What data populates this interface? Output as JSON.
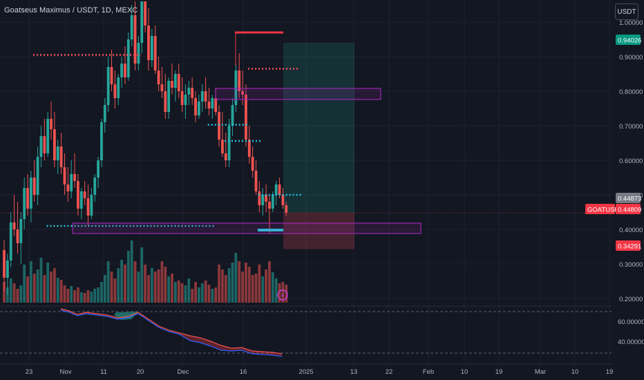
{
  "header": {
    "symbol_title": "Goatseus Maximus / USDT, 1D, MEXC",
    "currency_button": "USDT"
  },
  "chart_data": {
    "type": "candlestick",
    "symbol": "GOATUSDT",
    "price_axis": {
      "ticks": [
        "1.00000",
        "0.90000",
        "0.80000",
        "0.70000",
        "0.60000",
        "0.50000",
        "0.40000",
        "0.30000",
        "0.20000"
      ],
      "ylim": [
        0.17,
        1.0
      ]
    },
    "time_axis": {
      "labels": [
        "23",
        "Nov",
        "11",
        "20",
        "Dec",
        "16",
        "2025",
        "13",
        "22",
        "Feb",
        "10",
        "19",
        "Mar",
        "10",
        "19"
      ]
    },
    "price_labels": {
      "target": "0.94026",
      "last_close": "0.44873",
      "symbol": "GOATUSDT",
      "current": "0.44809",
      "stop": "0.34291"
    },
    "trade_zone": {
      "entry": 0.448,
      "target": 0.94026,
      "stop": 0.34291
    },
    "indicator_pane": {
      "ticks": [
        "60.00000",
        "40.00000"
      ],
      "levels": [
        70,
        30
      ]
    },
    "colors": {
      "up": "#26a69a",
      "down": "#ef5350",
      "background": "#131722",
      "zone_border": "#9c27b0",
      "target_fill": "#22ab94",
      "stop_fill": "#f7525f",
      "dotted_resistance": "#f7525f",
      "dotted_support": "#26c6da"
    },
    "candles": [
      [
        0.34,
        0.37,
        0.22,
        0.26
      ],
      [
        0.26,
        0.33,
        0.21,
        0.31
      ],
      [
        0.31,
        0.45,
        0.29,
        0.42
      ],
      [
        0.42,
        0.5,
        0.38,
        0.4
      ],
      [
        0.4,
        0.48,
        0.33,
        0.36
      ],
      [
        0.36,
        0.45,
        0.3,
        0.43
      ],
      [
        0.43,
        0.55,
        0.4,
        0.52
      ],
      [
        0.52,
        0.56,
        0.44,
        0.46
      ],
      [
        0.46,
        0.57,
        0.42,
        0.55
      ],
      [
        0.55,
        0.6,
        0.48,
        0.5
      ],
      [
        0.5,
        0.64,
        0.47,
        0.61
      ],
      [
        0.61,
        0.7,
        0.58,
        0.67
      ],
      [
        0.67,
        0.72,
        0.6,
        0.62
      ],
      [
        0.62,
        0.74,
        0.61,
        0.72
      ],
      [
        0.72,
        0.77,
        0.66,
        0.69
      ],
      [
        0.69,
        0.74,
        0.58,
        0.6
      ],
      [
        0.6,
        0.66,
        0.56,
        0.64
      ],
      [
        0.64,
        0.68,
        0.56,
        0.58
      ],
      [
        0.58,
        0.62,
        0.5,
        0.53
      ],
      [
        0.53,
        0.58,
        0.48,
        0.51
      ],
      [
        0.51,
        0.6,
        0.49,
        0.56
      ],
      [
        0.56,
        0.62,
        0.52,
        0.54
      ],
      [
        0.54,
        0.56,
        0.44,
        0.46
      ],
      [
        0.46,
        0.52,
        0.43,
        0.51
      ],
      [
        0.51,
        0.54,
        0.47,
        0.49
      ],
      [
        0.49,
        0.53,
        0.41,
        0.44
      ],
      [
        0.44,
        0.52,
        0.43,
        0.5
      ],
      [
        0.5,
        0.56,
        0.48,
        0.55
      ],
      [
        0.55,
        0.61,
        0.52,
        0.6
      ],
      [
        0.6,
        0.72,
        0.58,
        0.71
      ],
      [
        0.71,
        0.78,
        0.68,
        0.76
      ],
      [
        0.76,
        0.9,
        0.74,
        0.87
      ],
      [
        0.87,
        0.92,
        0.8,
        0.82
      ],
      [
        0.82,
        0.86,
        0.75,
        0.78
      ],
      [
        0.78,
        0.85,
        0.76,
        0.84
      ],
      [
        0.84,
        0.9,
        0.81,
        0.88
      ],
      [
        0.88,
        0.93,
        0.82,
        0.84
      ],
      [
        0.84,
        0.97,
        0.83,
        0.95
      ],
      [
        0.95,
        1.05,
        0.93,
        1.02
      ],
      [
        1.02,
        1.06,
        0.86,
        0.88
      ],
      [
        0.88,
        0.96,
        0.86,
        0.94
      ],
      [
        0.94,
        1.08,
        0.91,
        1.06
      ],
      [
        1.06,
        1.1,
        0.97,
        0.99
      ],
      [
        0.99,
        1.04,
        0.86,
        0.89
      ],
      [
        0.89,
        0.98,
        0.87,
        0.96
      ],
      [
        0.96,
        0.99,
        0.85,
        0.86
      ],
      [
        0.86,
        0.9,
        0.8,
        0.82
      ],
      [
        0.82,
        0.87,
        0.78,
        0.8
      ],
      [
        0.8,
        0.85,
        0.72,
        0.74
      ],
      [
        0.74,
        0.84,
        0.72,
        0.83
      ],
      [
        0.83,
        0.88,
        0.79,
        0.81
      ],
      [
        0.81,
        0.86,
        0.77,
        0.85
      ],
      [
        0.85,
        0.88,
        0.78,
        0.8
      ],
      [
        0.8,
        0.84,
        0.74,
        0.76
      ],
      [
        0.76,
        0.82,
        0.72,
        0.79
      ],
      [
        0.79,
        0.83,
        0.76,
        0.81
      ],
      [
        0.81,
        0.84,
        0.76,
        0.78
      ],
      [
        0.78,
        0.8,
        0.71,
        0.73
      ],
      [
        0.73,
        0.79,
        0.72,
        0.77
      ],
      [
        0.77,
        0.82,
        0.74,
        0.8
      ],
      [
        0.8,
        0.84,
        0.75,
        0.77
      ],
      [
        0.77,
        0.81,
        0.73,
        0.75
      ],
      [
        0.75,
        0.79,
        0.72,
        0.78
      ],
      [
        0.78,
        0.81,
        0.73,
        0.74
      ],
      [
        0.74,
        0.76,
        0.64,
        0.66
      ],
      [
        0.66,
        0.74,
        0.61,
        0.62
      ],
      [
        0.62,
        0.68,
        0.58,
        0.6
      ],
      [
        0.6,
        0.72,
        0.58,
        0.7
      ],
      [
        0.7,
        0.78,
        0.67,
        0.76
      ],
      [
        0.76,
        0.88,
        0.74,
        0.86
      ],
      [
        0.86,
        0.91,
        0.78,
        0.8
      ],
      [
        0.8,
        0.86,
        0.76,
        0.79
      ],
      [
        0.79,
        0.82,
        0.64,
        0.66
      ],
      [
        0.66,
        0.7,
        0.59,
        0.61
      ],
      [
        0.61,
        0.64,
        0.55,
        0.57
      ],
      [
        0.57,
        0.6,
        0.5,
        0.51
      ],
      [
        0.51,
        0.54,
        0.45,
        0.47
      ],
      [
        0.47,
        0.52,
        0.44,
        0.5
      ],
      [
        0.5,
        0.53,
        0.45,
        0.48
      ],
      [
        0.48,
        0.5,
        0.39,
        0.46
      ],
      [
        0.46,
        0.51,
        0.45,
        0.5
      ],
      [
        0.5,
        0.54,
        0.47,
        0.53
      ],
      [
        0.53,
        0.55,
        0.49,
        0.5
      ],
      [
        0.5,
        0.52,
        0.46,
        0.47
      ],
      [
        0.47,
        0.48,
        0.44,
        0.448
      ]
    ],
    "volume": [
      0.3,
      0.22,
      0.35,
      0.28,
      0.2,
      0.25,
      0.55,
      0.38,
      0.6,
      0.42,
      0.48,
      0.65,
      0.4,
      0.58,
      0.45,
      0.5,
      0.36,
      0.33,
      0.25,
      0.2,
      0.24,
      0.18,
      0.22,
      0.15,
      0.14,
      0.18,
      0.16,
      0.2,
      0.22,
      0.3,
      0.4,
      0.6,
      0.45,
      0.35,
      0.5,
      0.62,
      0.55,
      0.75,
      0.9,
      0.6,
      0.45,
      0.8,
      0.55,
      0.4,
      0.5,
      0.45,
      0.48,
      0.6,
      0.52,
      0.38,
      0.42,
      0.3,
      0.32,
      0.28,
      0.25,
      0.35,
      0.2,
      0.3,
      0.22,
      0.28,
      0.32,
      0.26,
      0.2,
      0.22,
      0.55,
      0.48,
      0.4,
      0.5,
      0.58,
      0.72,
      0.6,
      0.45,
      0.58,
      0.52,
      0.4,
      0.42,
      0.55,
      0.38,
      0.48,
      0.6,
      0.44,
      0.35,
      0.28,
      0.3,
      0.26
    ],
    "dotted_levels": [
      {
        "from": 0,
        "to": 32,
        "price": 0.905,
        "color": "#f7525f"
      },
      {
        "from": 64,
        "to": 79,
        "price": 0.865,
        "color": "#f7525f"
      },
      {
        "from": 52,
        "to": 64,
        "price": 0.703,
        "color": "#26c6da"
      },
      {
        "from": 57,
        "to": 68,
        "price": 0.656,
        "color": "#26c6da"
      },
      {
        "from": 67,
        "to": 80,
        "price": 0.5,
        "color": "#26c6da"
      },
      {
        "from": 4,
        "to": 54,
        "price": 0.41,
        "color": "#26c6da"
      }
    ],
    "high_marker": {
      "from": 71,
      "to": 84,
      "price": 0.97
    },
    "low_marker": {
      "from": 78,
      "to": 84,
      "price": 0.387
    },
    "zones": [
      {
        "from": 65,
        "to": 113,
        "top": 0.8,
        "bottom": 0.77
      },
      {
        "from": 4,
        "to": 125,
        "top": 0.405,
        "bottom": 0.375
      }
    ]
  }
}
